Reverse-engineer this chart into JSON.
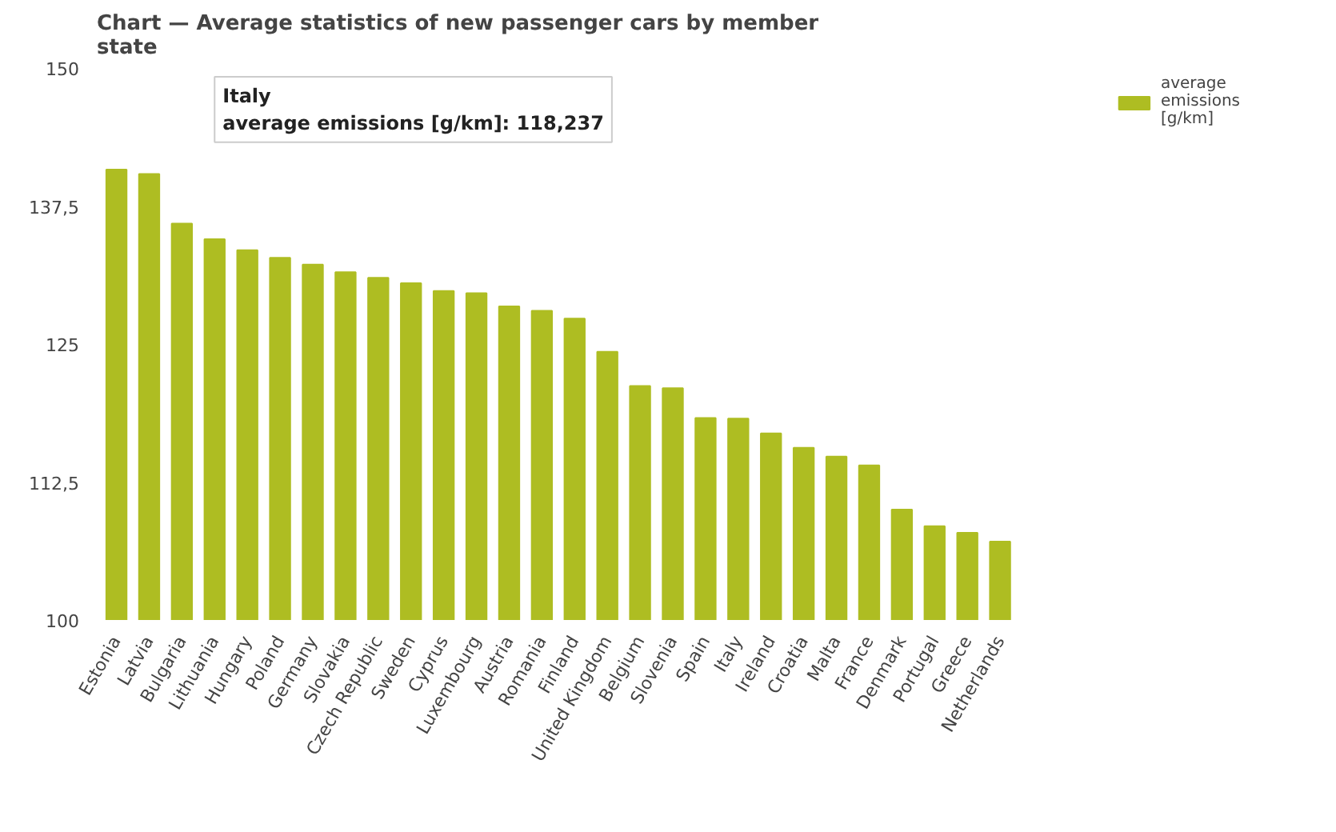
{
  "chart_data": {
    "type": "bar",
    "title": "Chart — Average statistics of new passenger cars by member state",
    "categories": [
      "Estonia",
      "Latvia",
      "Bulgaria",
      "Lithuania",
      "Hungary",
      "Poland",
      "Germany",
      "Slovakia",
      "Czech Republic",
      "Sweden",
      "Cyprus",
      "Luxembourg",
      "Austria",
      "Romania",
      "Finland",
      "United Kingdom",
      "Belgium",
      "Slovenia",
      "Spain",
      "Italy",
      "Ireland",
      "Croatia",
      "Malta",
      "France",
      "Denmark",
      "Portugal",
      "Greece",
      "Netherlands"
    ],
    "series": [
      {
        "name": "average emissions [g/km]",
        "color": "#aebd22",
        "values": [
          140.8,
          140.4,
          135.9,
          134.5,
          133.5,
          132.8,
          132.2,
          131.5,
          131.0,
          130.5,
          129.8,
          129.6,
          128.4,
          128.0,
          127.3,
          124.3,
          121.2,
          121.0,
          118.3,
          118.237,
          116.9,
          115.6,
          114.8,
          114.0,
          110.0,
          108.5,
          107.9,
          107.1
        ]
      }
    ],
    "ylim": [
      100,
      150
    ],
    "yticks": [
      100,
      {
        "value": 112.5,
        "label": "112,5"
      },
      125,
      {
        "value": 137.5,
        "label": "137,5"
      },
      150
    ],
    "grid": false,
    "legend": "top right",
    "annotations": [
      "Italy\naverage emissions [g/km]: 118,237"
    ]
  }
}
